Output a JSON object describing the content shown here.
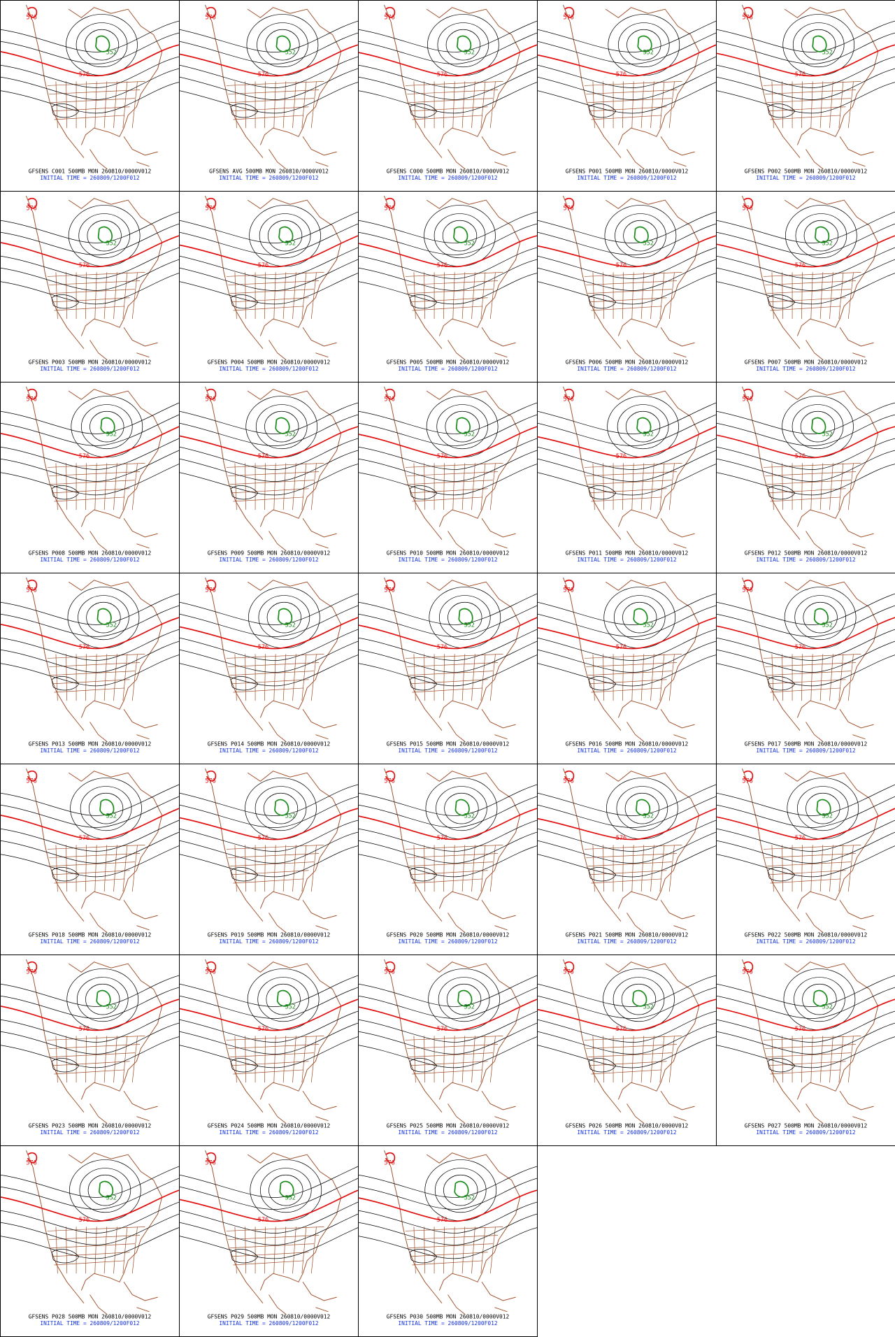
{
  "panels": [
    {
      "title": "GFSENS C001 500MB MON 260810/0000V012",
      "init": "INITIAL TIME = 260809/1200F012",
      "contour_labels": [
        "552",
        "576"
      ]
    },
    {
      "title": "GFSENS AVG 500MB MON 260810/0000V012",
      "init": "INITIAL TIME = 260809/1200F012",
      "contour_labels": [
        "552",
        "576"
      ]
    },
    {
      "title": "GFSENS C000 500MB MON 260810/0000V012",
      "init": "INITIAL TIME = 260809/1200F012",
      "contour_labels": [
        "552",
        "576"
      ]
    },
    {
      "title": "GFSENS P001 500MB MON 260810/0000V012",
      "init": "INITIAL TIME = 260809/1200F012",
      "contour_labels": [
        "552",
        "576"
      ]
    },
    {
      "title": "GFSENS P002 500MB MON 260810/0000V012",
      "init": "INITIAL TIME = 260809/1200F012",
      "contour_labels": [
        "552",
        "576"
      ]
    },
    {
      "title": "GFSENS P003 500MB MON 260810/0000V012",
      "init": "INITIAL TIME = 260809/1200F012",
      "contour_labels": [
        "552",
        "576"
      ]
    },
    {
      "title": "GFSENS P004 500MB MON 260810/0000V012",
      "init": "INITIAL TIME = 260809/1200F012",
      "contour_labels": [
        "552",
        "576"
      ]
    },
    {
      "title": "GFSENS P005 500MB MON 260810/0000V012",
      "init": "INITIAL TIME = 260809/1200F012",
      "contour_labels": [
        "552",
        "576"
      ]
    },
    {
      "title": "GFSENS P006 500MB MON 260810/0000V012",
      "init": "INITIAL TIME = 260809/1200F012",
      "contour_labels": [
        "552",
        "576"
      ]
    },
    {
      "title": "GFSENS P007 500MB MON 260810/0000V012",
      "init": "INITIAL TIME = 260809/1200F012",
      "contour_labels": [
        "552",
        "576"
      ]
    },
    {
      "title": "GFSENS P008 500MB MON 260810/0000V012",
      "init": "INITIAL TIME = 260809/1200F012",
      "contour_labels": [
        "552",
        "576"
      ]
    },
    {
      "title": "GFSENS P009 500MB MON 260810/0000V012",
      "init": "INITIAL TIME = 260809/1200F012",
      "contour_labels": [
        "552",
        "576"
      ]
    },
    {
      "title": "GFSENS P010 500MB MON 260810/0000V012",
      "init": "INITIAL TIME = 260809/1200F012",
      "contour_labels": [
        "552",
        "576"
      ]
    },
    {
      "title": "GFSENS P011 500MB MON 260810/0000V012",
      "init": "INITIAL TIME = 260809/1200F012",
      "contour_labels": [
        "552",
        "576"
      ]
    },
    {
      "title": "GFSENS P012 500MB MON 260810/0000V012",
      "init": "INITIAL TIME = 260809/1200F012",
      "contour_labels": [
        "552",
        "576"
      ]
    },
    {
      "title": "GFSENS P013 500MB MON 260810/0000V012",
      "init": "INITIAL TIME = 260809/1200F012",
      "contour_labels": [
        "552",
        "576"
      ]
    },
    {
      "title": "GFSENS P014 500MB MON 260810/0000V012",
      "init": "INITIAL TIME = 260809/1200F012",
      "contour_labels": [
        "552",
        "576"
      ]
    },
    {
      "title": "GFSENS P015 500MB MON 260810/0000V012",
      "init": "INITIAL TIME = 260809/1200F012",
      "contour_labels": [
        "552",
        "576"
      ]
    },
    {
      "title": "GFSENS P016 500MB MON 260810/0000V012",
      "init": "INITIAL TIME = 260809/1200F012",
      "contour_labels": [
        "552",
        "576"
      ]
    },
    {
      "title": "GFSENS P017 500MB MON 260810/0000V012",
      "init": "INITIAL TIME = 260809/1200F012",
      "contour_labels": [
        "552",
        "576"
      ]
    },
    {
      "title": "GFSENS P018 500MB MON 260810/0000V012",
      "init": "INITIAL TIME = 260809/1200F012",
      "contour_labels": [
        "552",
        "576"
      ]
    },
    {
      "title": "GFSENS P019 500MB MON 260810/0000V012",
      "init": "INITIAL TIME = 260809/1200F012",
      "contour_labels": [
        "552",
        "576"
      ]
    },
    {
      "title": "GFSENS P020 500MB MON 260810/0000V012",
      "init": "INITIAL TIME = 260809/1200F012",
      "contour_labels": [
        "552",
        "576"
      ]
    },
    {
      "title": "GFSENS P021 500MB MON 260810/0000V012",
      "init": "INITIAL TIME = 260809/1200F012",
      "contour_labels": [
        "552",
        "576"
      ]
    },
    {
      "title": "GFSENS P022 500MB MON 260810/0000V012",
      "init": "INITIAL TIME = 260809/1200F012",
      "contour_labels": [
        "552",
        "576"
      ]
    },
    {
      "title": "GFSENS P023 500MB MON 260810/0000V012",
      "init": "INITIAL TIME = 260809/1200F012",
      "contour_labels": [
        "552",
        "576"
      ]
    },
    {
      "title": "GFSENS P024 500MB MON 260810/0000V012",
      "init": "INITIAL TIME = 260809/1200F012",
      "contour_labels": [
        "552",
        "576"
      ]
    },
    {
      "title": "GFSENS P025 500MB MON 260810/0000V012",
      "init": "INITIAL TIME = 260809/1200F012",
      "contour_labels": [
        "552",
        "576"
      ]
    },
    {
      "title": "GFSENS P026 500MB MON 260810/0000V012",
      "init": "INITIAL TIME = 260809/1200F012",
      "contour_labels": [
        "552",
        "576"
      ]
    },
    {
      "title": "GFSENS P027 500MB MON 260810/0000V012",
      "init": "INITIAL TIME = 260809/1200F012",
      "contour_labels": [
        "552",
        "576"
      ]
    },
    {
      "title": "GFSENS P028 500MB MON 260810/0000V012",
      "init": "INITIAL TIME = 260809/1200F012",
      "contour_labels": [
        "552",
        "576"
      ]
    },
    {
      "title": "GFSENS P029 500MB MON 260810/0000V012",
      "init": "INITIAL TIME = 260809/1200F012",
      "contour_labels": [
        "552",
        "576"
      ]
    },
    {
      "title": "GFSENS P030 500MB MON 260810/0000V012",
      "init": "INITIAL TIME = 260809/1200F012",
      "contour_labels": [
        "552",
        "576"
      ]
    }
  ]
}
